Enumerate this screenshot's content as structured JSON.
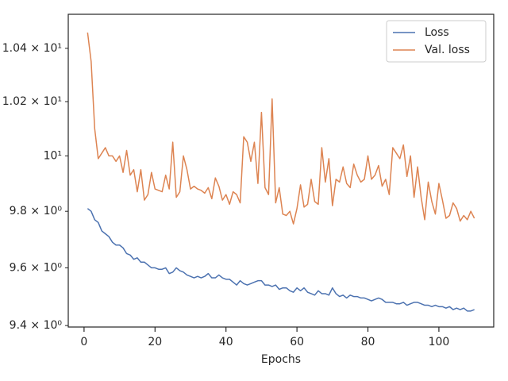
{
  "chart_data": {
    "type": "line",
    "xlabel": "Epochs",
    "x": [
      1,
      2,
      3,
      4,
      5,
      6,
      7,
      8,
      9,
      10,
      11,
      12,
      13,
      14,
      15,
      16,
      17,
      18,
      19,
      20,
      21,
      22,
      23,
      24,
      25,
      26,
      27,
      28,
      29,
      30,
      31,
      32,
      33,
      34,
      35,
      36,
      37,
      38,
      39,
      40,
      41,
      42,
      43,
      44,
      45,
      46,
      47,
      48,
      49,
      50,
      51,
      52,
      53,
      54,
      55,
      56,
      57,
      58,
      59,
      60,
      61,
      62,
      63,
      64,
      65,
      66,
      67,
      68,
      69,
      70,
      71,
      72,
      73,
      74,
      75,
      76,
      77,
      78,
      79,
      80,
      81,
      82,
      83,
      84,
      85,
      86,
      87,
      88,
      89,
      90,
      91,
      92,
      93,
      94,
      95,
      96,
      97,
      98,
      99,
      100,
      101,
      102,
      103,
      104,
      105,
      106,
      107,
      108,
      109,
      110
    ],
    "series": [
      {
        "name": "Loss",
        "color": "#4c72b0",
        "values": [
          9.81,
          9.8,
          9.77,
          9.76,
          9.73,
          9.72,
          9.71,
          9.69,
          9.68,
          9.68,
          9.67,
          9.65,
          9.645,
          9.63,
          9.635,
          9.62,
          9.62,
          9.61,
          9.6,
          9.6,
          9.595,
          9.595,
          9.6,
          9.58,
          9.585,
          9.6,
          9.59,
          9.585,
          9.575,
          9.57,
          9.565,
          9.57,
          9.565,
          9.57,
          9.58,
          9.565,
          9.565,
          9.575,
          9.565,
          9.56,
          9.56,
          9.55,
          9.54,
          9.555,
          9.545,
          9.54,
          9.545,
          9.55,
          9.555,
          9.555,
          9.54,
          9.54,
          9.535,
          9.54,
          9.525,
          9.53,
          9.53,
          9.52,
          9.515,
          9.53,
          9.52,
          9.53,
          9.515,
          9.51,
          9.505,
          9.52,
          9.51,
          9.51,
          9.505,
          9.53,
          9.51,
          9.5,
          9.505,
          9.495,
          9.505,
          9.5,
          9.5,
          9.495,
          9.495,
          9.49,
          9.485,
          9.49,
          9.495,
          9.49,
          9.48,
          9.48,
          9.48,
          9.475,
          9.475,
          9.48,
          9.47,
          9.475,
          9.48,
          9.48,
          9.475,
          9.47,
          9.47,
          9.465,
          9.47,
          9.465,
          9.465,
          9.46,
          9.465,
          9.455,
          9.46,
          9.455,
          9.46,
          9.45,
          9.45,
          9.455
        ]
      },
      {
        "name": "Val. loss",
        "color": "#dd8452",
        "values": [
          10.46,
          10.35,
          10.1,
          9.99,
          10.01,
          10.03,
          10.0,
          10.0,
          9.98,
          10.0,
          9.94,
          10.02,
          9.93,
          9.95,
          9.87,
          9.95,
          9.84,
          9.86,
          9.94,
          9.88,
          9.875,
          9.87,
          9.93,
          9.88,
          10.05,
          9.85,
          9.87,
          10.0,
          9.95,
          9.88,
          9.89,
          9.88,
          9.875,
          9.865,
          9.885,
          9.845,
          9.92,
          9.89,
          9.84,
          9.86,
          9.825,
          9.87,
          9.86,
          9.83,
          10.07,
          10.05,
          9.98,
          10.05,
          9.9,
          10.16,
          9.885,
          9.86,
          10.21,
          9.83,
          9.885,
          9.79,
          9.785,
          9.8,
          9.755,
          9.81,
          9.895,
          9.815,
          9.825,
          9.915,
          9.835,
          9.825,
          10.03,
          9.905,
          9.99,
          9.82,
          9.915,
          9.905,
          9.96,
          9.9,
          9.885,
          9.97,
          9.93,
          9.905,
          9.915,
          10.0,
          9.915,
          9.93,
          9.965,
          9.89,
          9.915,
          9.86,
          10.03,
          10.01,
          9.99,
          10.04,
          9.925,
          10.0,
          9.85,
          9.96,
          9.85,
          9.77,
          9.905,
          9.835,
          9.79,
          9.9,
          9.84,
          9.775,
          9.785,
          9.83,
          9.81,
          9.765,
          9.785,
          9.77,
          9.8,
          9.775
        ]
      }
    ],
    "xlim": [
      -4.45,
      115.45
    ],
    "xticks": [
      0,
      20,
      40,
      60,
      80,
      100
    ],
    "ylim": [
      9.395,
      10.53
    ],
    "ylog": true,
    "yticks": [
      {
        "value": 9.4,
        "label": "9.4 × 10⁰"
      },
      {
        "value": 9.6,
        "label": "9.6 × 10⁰"
      },
      {
        "value": 9.8,
        "label": "9.8 × 10⁰"
      },
      {
        "value": 10,
        "label": "10¹"
      },
      {
        "value": 10.2,
        "label": "1.02 × 10¹"
      },
      {
        "value": 10.4,
        "label": "1.04 × 10¹"
      }
    ],
    "grid": false,
    "legend": "upper right"
  }
}
